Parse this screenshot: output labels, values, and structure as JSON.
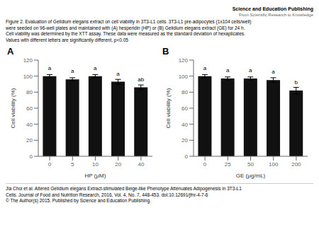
{
  "chart_data": [
    {
      "type": "bar",
      "title": "A",
      "xlabel": "HP (μM)",
      "ylabel": "Cell viability (%)",
      "categories": [
        "0",
        "5",
        "10",
        "20",
        "40"
      ],
      "values": [
        100,
        96,
        100,
        93,
        86
      ],
      "errors": [
        2,
        2,
        2,
        3,
        3
      ],
      "annotations": [
        "a",
        "a",
        "a",
        "a",
        "ab"
      ],
      "color": "#111111",
      "ylim": [
        0,
        120
      ],
      "yticks": [
        0,
        20,
        40,
        60,
        80,
        100,
        120
      ],
      "grid": false
    },
    {
      "type": "bar",
      "title": "B",
      "xlabel": "GE (μg/mL)",
      "ylabel": "Cell viability (%)",
      "categories": [
        "0",
        "25",
        "50",
        "100",
        "200"
      ],
      "values": [
        100,
        97,
        97,
        95,
        82
      ],
      "errors": [
        2,
        2,
        2,
        3,
        4
      ],
      "annotations": [
        "a",
        "a",
        "a",
        "a",
        "b"
      ],
      "color": "#111111",
      "ylim": [
        0,
        120
      ],
      "yticks": [
        0,
        20,
        40,
        60,
        80,
        100,
        120
      ],
      "grid": false
    }
  ],
  "annotations": [
    "Figure 2. Evaluation of Gelidium elegans extract on cell viability in 3T3-L1 cells. 3T3-L1 pre-adipocytes (1x104 cells/well)",
    "were seeded on 96-well plates and maintained with (A) hesperidin (HP) or (B) Gelidium elegans extract (GE) for 24 h.",
    "Cell viability was determined by the XTT assay. These data were measured as the standard deviation of hexaplicates.",
    "Values with different letters are significantly different, p<0.05",
    "Science and Education Publishing",
    "From Scientific Research to Knowledge",
    "Jia Choi et al. Altered Gelidium elegans Extract-stimulated Beige-like Phenotype Attenuates Adipogenesis in 3T3-L1",
    "Cells. Journal of Food and Nutrition Research, 2016, Vol. 4, No. 7, 448-453. doi:10.12691/jfnr-4-7-6",
    "© The Author(s) 2015. Published by Science and Education Publishing."
  ]
}
